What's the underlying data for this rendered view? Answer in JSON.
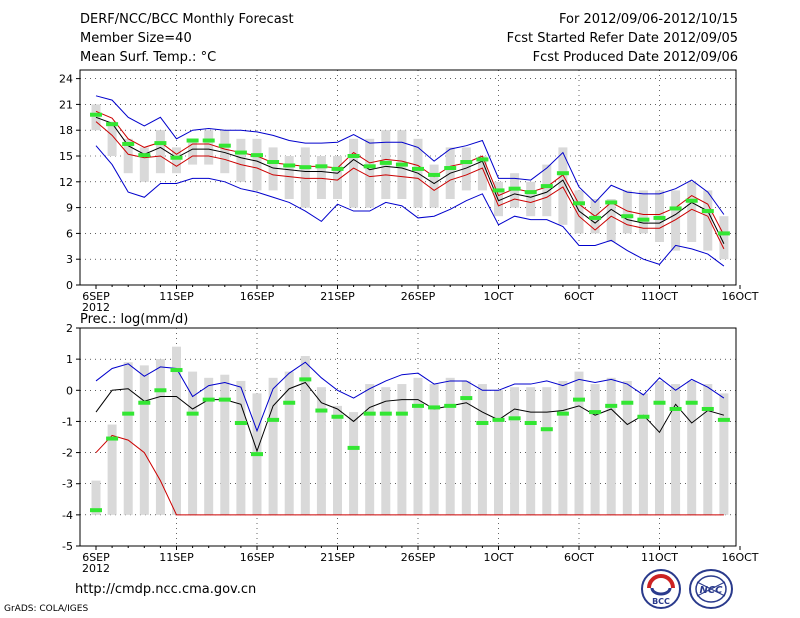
{
  "header": {
    "title": "DERF/NCC/BCC Monthly Forecast",
    "member_size": "Member Size=40",
    "variable": "Mean Surf. Temp.: °C",
    "for_period": "For 2012/09/06-2012/10/15",
    "fcst_started": "Fcst Started Refer Date 2012/09/05",
    "fcst_produced": "Fcst Produced Date 2012/09/06"
  },
  "footer": {
    "url": "http://cmdp.ncc.cma.gov.cn",
    "credit": "GrADS: COLA/IGES",
    "logo_left_text": "BCC",
    "logo_right_text": "NCC"
  },
  "colors": {
    "range_bar": "#d9d9d9",
    "ens_mean": "#000000",
    "median": "#4cff4c",
    "upper_envelope": "#0000cc",
    "lower_bound": "#cc0000",
    "green_marker": "#33e633"
  },
  "chart_data": [
    {
      "type": "bar",
      "title": "Mean Surf. Temp.: °C",
      "x_ticks": [
        "6SEP",
        "11SEP",
        "16SEP",
        "21SEP",
        "26SEP",
        "1OCT",
        "6OCT",
        "11OCT",
        "16OCT"
      ],
      "x_tick_days": [
        0,
        5,
        10,
        15,
        20,
        25,
        30,
        35,
        40
      ],
      "x_year": "2012",
      "ylim": [
        0,
        25
      ],
      "y_ticks": [
        0,
        3,
        6,
        9,
        12,
        15,
        18,
        21,
        24
      ],
      "grid": true,
      "series": [
        {
          "name": "bar_top",
          "values": [
            21,
            19,
            17,
            16,
            18,
            16,
            17,
            18,
            18,
            17,
            17,
            16,
            15,
            16,
            15,
            15,
            17,
            17,
            18,
            18,
            17,
            14,
            16,
            16,
            15,
            12,
            13,
            12,
            14,
            16,
            11,
            10,
            10,
            11,
            11,
            11,
            11,
            12,
            11,
            8
          ]
        },
        {
          "name": "bar_bottom",
          "values": [
            18,
            15,
            13,
            12,
            13,
            13,
            14,
            14,
            13,
            12,
            11,
            11,
            10,
            9,
            10,
            10,
            9,
            9,
            10,
            10,
            9,
            9,
            10,
            11,
            11,
            8,
            9,
            8,
            8,
            7,
            6,
            6,
            5,
            6,
            6,
            5,
            4,
            5,
            4,
            3
          ]
        },
        {
          "name": "green",
          "values": [
            19.8,
            18.7,
            16.4,
            15.1,
            16.5,
            14.8,
            16.8,
            16.8,
            16.2,
            15.4,
            15.1,
            14.3,
            13.9,
            13.7,
            13.8,
            13.5,
            15.0,
            13.8,
            14.2,
            14.0,
            13.5,
            12.8,
            13.6,
            14.3,
            14.6,
            11.0,
            11.2,
            10.8,
            11.5,
            13.0,
            9.5,
            7.8,
            9.6,
            8.0,
            7.6,
            7.8,
            8.9,
            9.8,
            8.6,
            6.0
          ]
        },
        {
          "name": "upper_envelope",
          "values": [
            22,
            21.5,
            19.5,
            18.5,
            19.5,
            17,
            18,
            18.2,
            18,
            18,
            17.8,
            17.4,
            16.8,
            16.5,
            16.5,
            16.6,
            17.5,
            16.5,
            16.6,
            16.6,
            16,
            14.4,
            15.8,
            16.2,
            16.8,
            12.4,
            12.4,
            12.2,
            13.6,
            15.4,
            11.4,
            9.6,
            11.6,
            10.8,
            10.6,
            10.6,
            11.2,
            12.2,
            10.8,
            8.2
          ]
        },
        {
          "name": "red_upper",
          "values": [
            20.2,
            19.4,
            17,
            16,
            16.6,
            15.2,
            16.4,
            16.4,
            15.8,
            15.4,
            15,
            14.2,
            14,
            13.8,
            13.8,
            13.6,
            15.4,
            14.2,
            14.6,
            14.4,
            13.9,
            12.6,
            13.8,
            14.2,
            15,
            10.4,
            11.2,
            10.8,
            11.4,
            12.8,
            9.4,
            8,
            9.6,
            8.6,
            8.2,
            8.2,
            9,
            10.4,
            9.4,
            5.8
          ]
        },
        {
          "name": "ens_mean",
          "values": [
            19.5,
            18.8,
            16.2,
            15.2,
            16.0,
            14.8,
            15.8,
            15.8,
            15.4,
            14.8,
            14.4,
            13.6,
            13.4,
            13.2,
            13.2,
            13.0,
            14.6,
            13.4,
            13.8,
            13.6,
            13.0,
            11.8,
            13.0,
            13.6,
            14.4,
            9.8,
            10.6,
            10.2,
            10.8,
            12.2,
            8.6,
            7.2,
            8.8,
            7.6,
            7.2,
            7.2,
            8.2,
            9.6,
            8.6,
            4.8
          ]
        },
        {
          "name": "red_lower",
          "values": [
            19,
            17.4,
            15.2,
            14.8,
            15,
            13.8,
            15,
            15,
            14.6,
            14,
            13.6,
            12.8,
            12.6,
            12.4,
            12.4,
            12.2,
            13.6,
            12.6,
            12.8,
            12.6,
            12.4,
            11,
            12.2,
            12.8,
            13.6,
            9.2,
            10,
            9.6,
            10.2,
            11.4,
            8,
            6.4,
            8,
            7,
            6.6,
            6.6,
            7.6,
            8.8,
            8,
            4.2
          ]
        },
        {
          "name": "lower_envelope",
          "values": [
            16.2,
            14,
            10.8,
            10.2,
            11.8,
            11.8,
            12.4,
            12.4,
            12,
            11.2,
            10.8,
            10.2,
            9.6,
            8.6,
            7.4,
            9.4,
            8.6,
            8.6,
            9.6,
            9.2,
            7.8,
            8.0,
            8.8,
            9.8,
            10.6,
            7.0,
            8.0,
            7.6,
            7.6,
            6.8,
            4.6,
            4.6,
            5.2,
            4.0,
            3.0,
            2.4,
            4.6,
            4.2,
            3.6,
            2.2
          ]
        }
      ]
    },
    {
      "type": "bar",
      "title": "Prec.: log(mm/d)",
      "x_ticks": [
        "6SEP",
        "11SEP",
        "16SEP",
        "21SEP",
        "26SEP",
        "1OCT",
        "6OCT",
        "11OCT",
        "16OCT"
      ],
      "x_tick_days": [
        0,
        5,
        10,
        15,
        20,
        25,
        30,
        35,
        40
      ],
      "x_year": "2012",
      "ylim": [
        -5,
        2
      ],
      "y_ticks": [
        -5,
        -4,
        -3,
        -2,
        -1,
        0,
        1,
        2
      ],
      "grid": true,
      "series": [
        {
          "name": "bar_top",
          "values": [
            -2.9,
            -1.1,
            0.9,
            0.8,
            1.0,
            1.4,
            0.6,
            0.4,
            0.5,
            0.3,
            -0.1,
            0.4,
            0.6,
            1.1,
            0.1,
            -0.5,
            -0.7,
            0.2,
            0.1,
            0.2,
            0.4,
            0.2,
            0.4,
            0.3,
            0.2,
            0.0,
            0.1,
            0.1,
            0.1,
            0.3,
            0.6,
            0.2,
            0.4,
            0.3,
            -0.1,
            0.3,
            0.2,
            0.3,
            0.2,
            -0.1
          ]
        },
        {
          "name": "bar_bottom",
          "values": [
            -4,
            -4,
            -4,
            -4,
            -4,
            -4,
            -4,
            -4,
            -4,
            -4,
            -4,
            -4,
            -4,
            -4,
            -4,
            -4,
            -4,
            -4,
            -4,
            -4,
            -4,
            -4,
            -4,
            -4,
            -4,
            -4,
            -4,
            -4,
            -4,
            -4,
            -4,
            -4,
            -4,
            -4,
            -4,
            -4,
            -4,
            -4,
            -4,
            -4
          ]
        },
        {
          "name": "green",
          "values": [
            -3.85,
            -1.55,
            -0.75,
            -0.4,
            0.0,
            0.65,
            -0.75,
            -0.3,
            -0.3,
            -1.05,
            -2.05,
            -0.95,
            -0.4,
            0.35,
            -0.65,
            -0.85,
            -1.85,
            -0.75,
            -0.75,
            -0.75,
            -0.5,
            -0.55,
            -0.5,
            -0.25,
            -1.05,
            -0.95,
            -0.9,
            -1.05,
            -1.25,
            -0.75,
            -0.3,
            -0.7,
            -0.5,
            -0.4,
            -0.85,
            -0.4,
            -0.6,
            -0.4,
            -0.6,
            -0.95
          ]
        },
        {
          "name": "upper_envelope",
          "values": [
            0.3,
            0.7,
            0.85,
            0.45,
            0.75,
            0.7,
            -0.2,
            0.15,
            0.25,
            0.1,
            -1.3,
            0.05,
            0.55,
            0.9,
            0.4,
            0.0,
            -0.25,
            0.05,
            0.3,
            0.5,
            0.55,
            0.2,
            0.3,
            0.3,
            0.0,
            0.0,
            0.2,
            0.2,
            0.3,
            0.15,
            0.35,
            0.25,
            0.35,
            0.2,
            -0.15,
            0.4,
            0.0,
            0.35,
            0.1,
            -0.25
          ]
        },
        {
          "name": "ens_mean",
          "values": [
            -0.7,
            0.0,
            0.05,
            -0.35,
            -0.2,
            -0.2,
            -0.6,
            -0.3,
            -0.3,
            -0.45,
            -1.95,
            -0.5,
            0.05,
            0.25,
            -0.4,
            -0.6,
            -1.0,
            -0.55,
            -0.35,
            -0.3,
            -0.3,
            -0.6,
            -0.5,
            -0.4,
            -0.7,
            -0.95,
            -0.6,
            -0.7,
            -0.7,
            -0.65,
            -0.5,
            -0.8,
            -0.6,
            -1.1,
            -0.8,
            -1.35,
            -0.45,
            -1.05,
            -0.65,
            -0.8
          ]
        },
        {
          "name": "red_lower",
          "values": [
            -2.0,
            -1.45,
            -1.6,
            -2.0,
            -2.9,
            -4,
            -4,
            -4,
            -4,
            -4,
            -4,
            -4,
            -4,
            -4,
            -4,
            -4,
            -4,
            -4,
            -4,
            -4,
            -4,
            -4,
            -4,
            -4,
            -4,
            -4,
            -4,
            -4,
            -4,
            -4,
            -4,
            -4,
            -4,
            -4,
            -4,
            -4,
            -4,
            -4,
            -4,
            -4
          ]
        }
      ]
    }
  ]
}
